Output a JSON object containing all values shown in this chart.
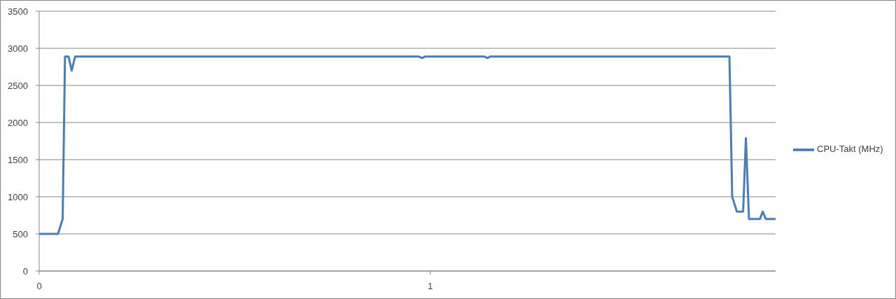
{
  "chart_data": {
    "type": "line",
    "x": [
      0,
      0.048,
      0.06,
      0.066,
      0.075,
      0.083,
      0.092,
      0.97,
      0.979,
      0.987,
      1.138,
      1.146,
      1.154,
      1.765,
      1.772,
      1.784,
      1.8,
      1.807,
      1.815,
      1.843,
      1.85,
      1.858,
      1.883
    ],
    "series": [
      {
        "name": "CPU-Takt (MHz)",
        "color": "#4a7ebb",
        "values": [
          500,
          500,
          700,
          2890,
          2890,
          2700,
          2890,
          2890,
          2870,
          2890,
          2890,
          2870,
          2890,
          2890,
          1000,
          800,
          800,
          1790,
          700,
          700,
          800,
          700,
          700
        ]
      }
    ],
    "xlim": [
      0,
      1.883
    ],
    "xticks": [
      0,
      1
    ],
    "ylim": [
      0,
      3500
    ],
    "yticks": [
      0,
      500,
      1000,
      1500,
      2000,
      2500,
      3000,
      3500
    ],
    "grid": "y",
    "legend": "right"
  }
}
